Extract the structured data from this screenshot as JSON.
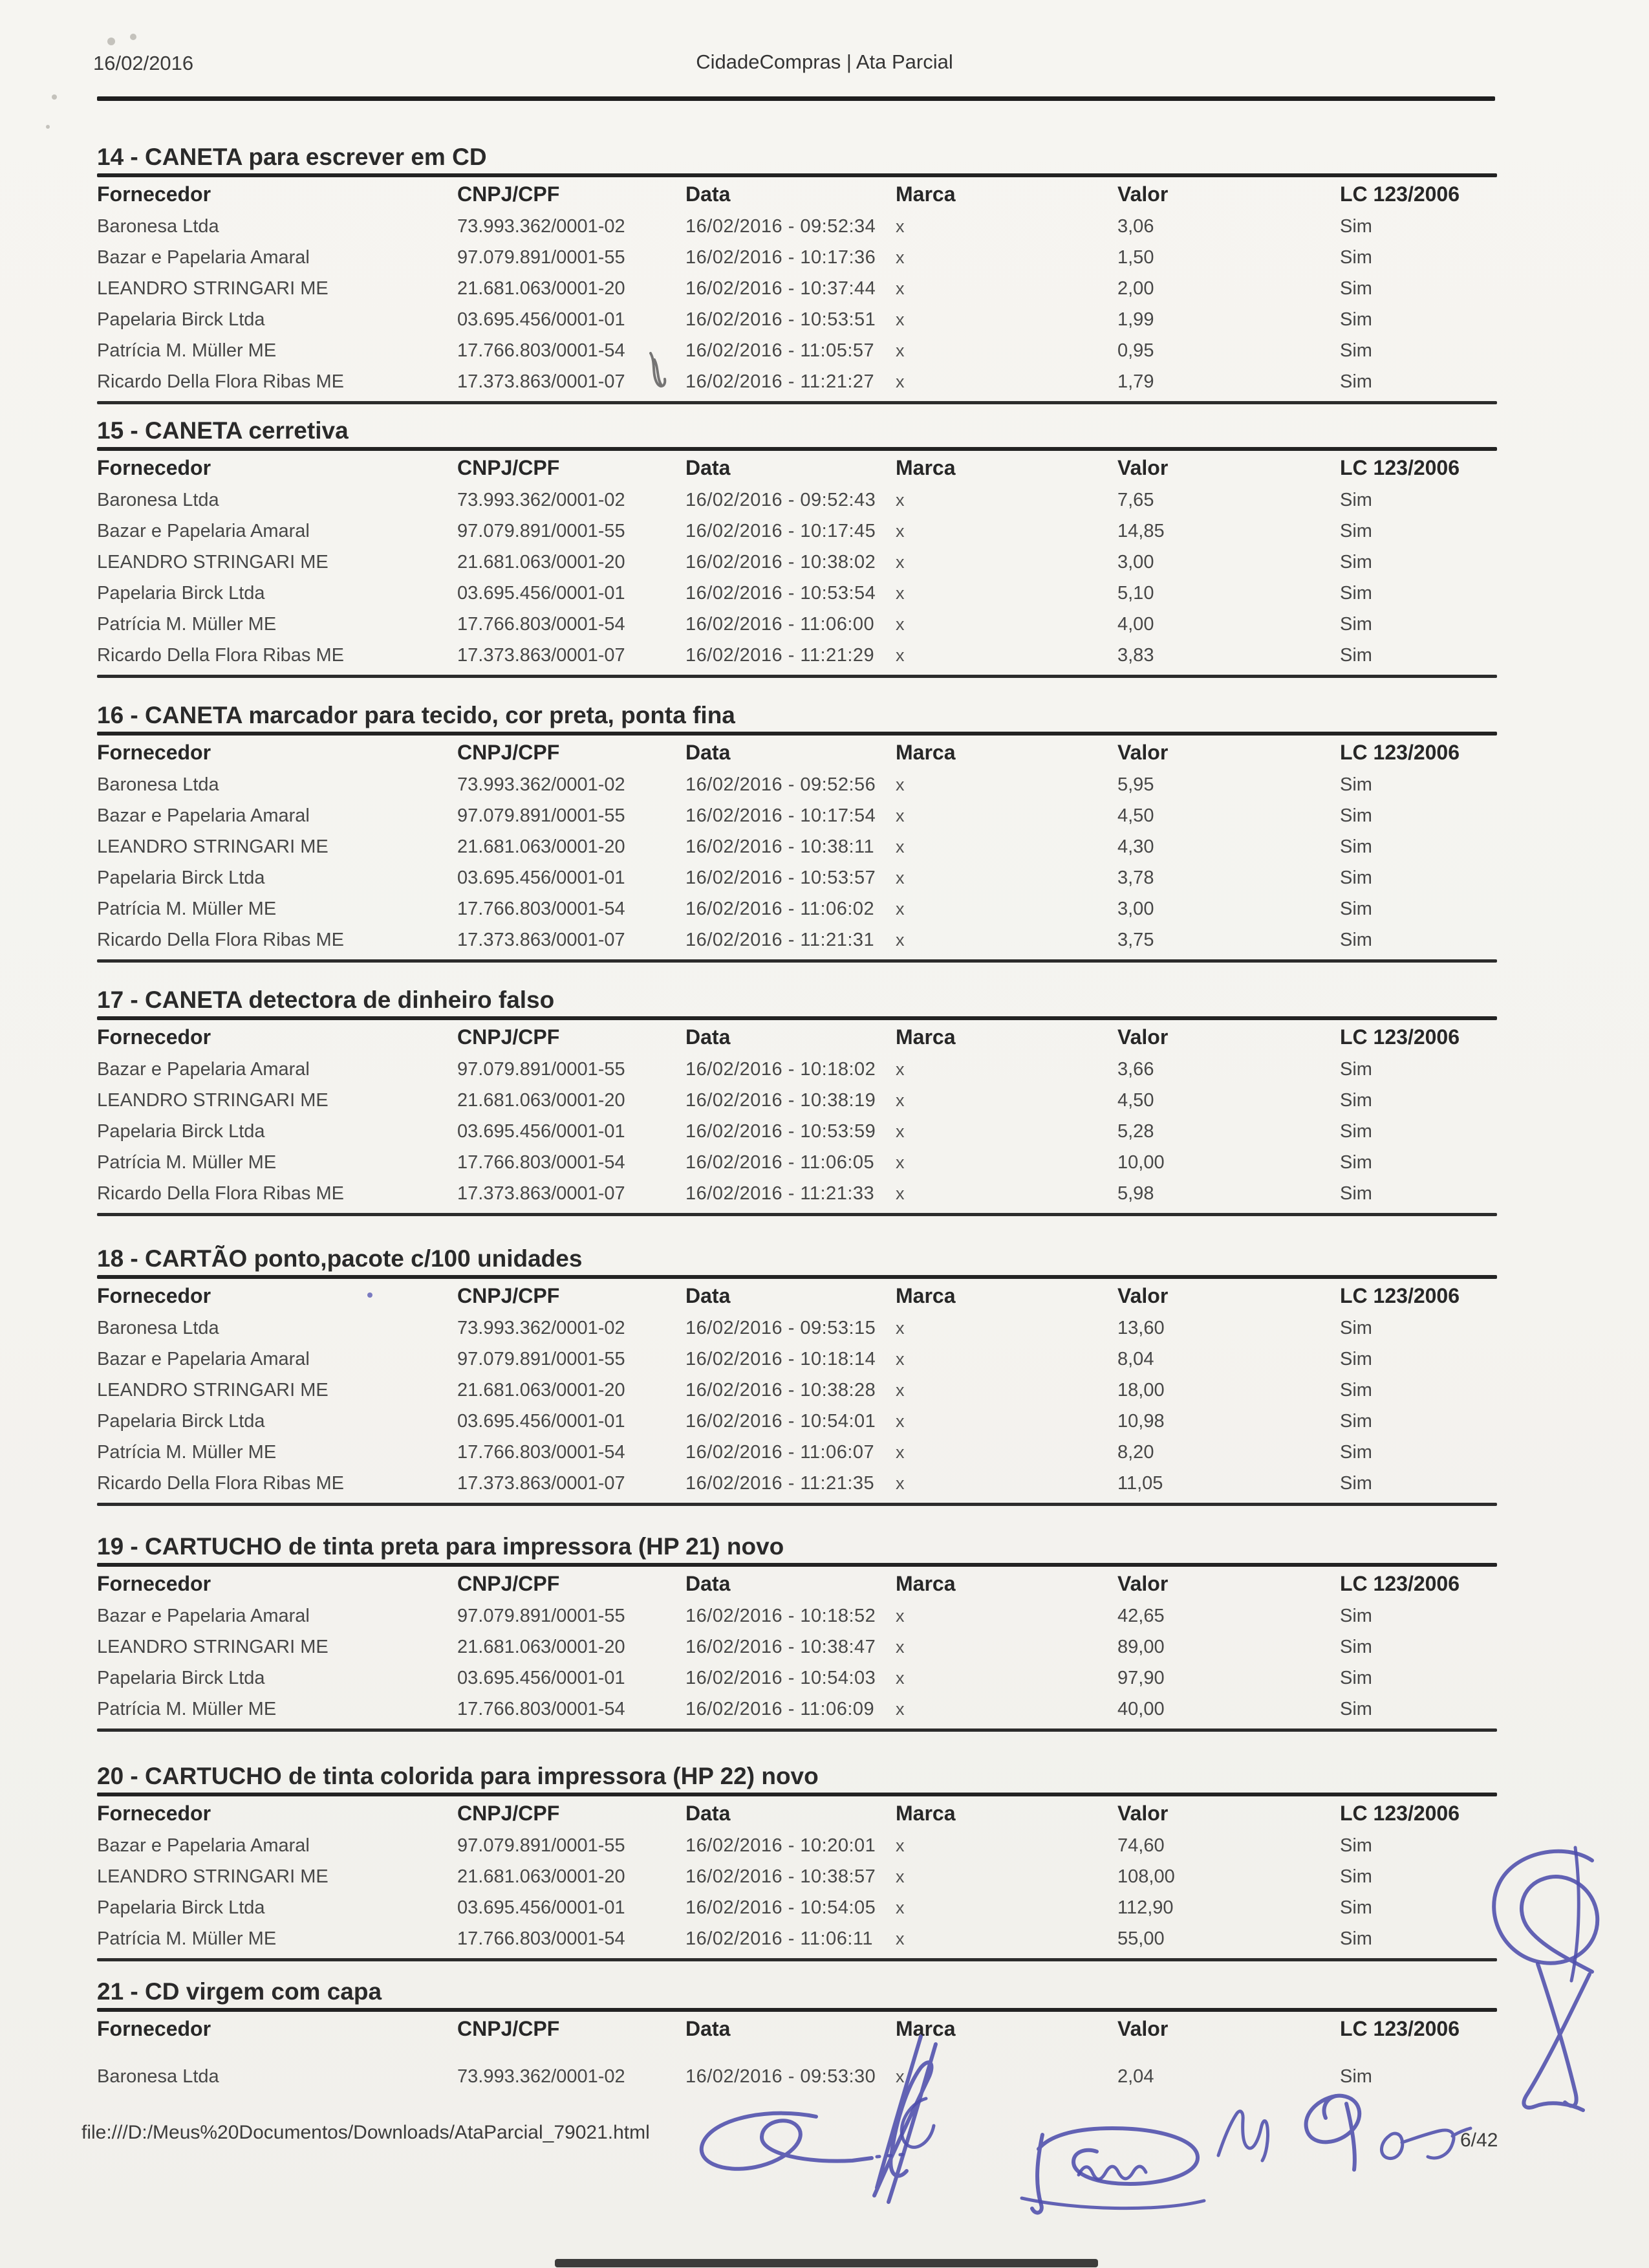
{
  "header": {
    "date": "16/02/2016",
    "title": "CidadeCompras | Ata Parcial"
  },
  "table_columns": {
    "fornecedor": "Fornecedor",
    "cnpj": "CNPJ/CPF",
    "data": "Data",
    "marca": "Marca",
    "valor": "Valor",
    "lc": "LC 123/2006"
  },
  "sections": [
    {
      "title": "14 - CANETA para escrever em CD",
      "rows": [
        {
          "fornecedor": "Baronesa Ltda",
          "cnpj": "73.993.362/0001-02",
          "data": "16/02/2016 - 09:52:34",
          "marca": "x",
          "valor": "3,06",
          "lc": "Sim"
        },
        {
          "fornecedor": "Bazar e Papelaria Amaral",
          "cnpj": "97.079.891/0001-55",
          "data": "16/02/2016 - 10:17:36",
          "marca": "x",
          "valor": "1,50",
          "lc": "Sim"
        },
        {
          "fornecedor": "LEANDRO STRINGARI ME",
          "cnpj": "21.681.063/0001-20",
          "data": "16/02/2016 - 10:37:44",
          "marca": "x",
          "valor": "2,00",
          "lc": "Sim"
        },
        {
          "fornecedor": "Papelaria Birck Ltda",
          "cnpj": "03.695.456/0001-01",
          "data": "16/02/2016 - 10:53:51",
          "marca": "x",
          "valor": "1,99",
          "lc": "Sim"
        },
        {
          "fornecedor": "Patrícia M. Müller ME",
          "cnpj": "17.766.803/0001-54",
          "data": "16/02/2016 - 11:05:57",
          "marca": "x",
          "valor": "0,95",
          "lc": "Sim"
        },
        {
          "fornecedor": "Ricardo Della Flora Ribas ME",
          "cnpj": "17.373.863/0001-07",
          "data": "16/02/2016 - 11:21:27",
          "marca": "x",
          "valor": "1,79",
          "lc": "Sim"
        }
      ]
    },
    {
      "title": "15 - CANETA cerretiva",
      "rows": [
        {
          "fornecedor": "Baronesa Ltda",
          "cnpj": "73.993.362/0001-02",
          "data": "16/02/2016 - 09:52:43",
          "marca": "x",
          "valor": "7,65",
          "lc": "Sim"
        },
        {
          "fornecedor": "Bazar e Papelaria Amaral",
          "cnpj": "97.079.891/0001-55",
          "data": "16/02/2016 - 10:17:45",
          "marca": "x",
          "valor": "14,85",
          "lc": "Sim"
        },
        {
          "fornecedor": "LEANDRO STRINGARI ME",
          "cnpj": "21.681.063/0001-20",
          "data": "16/02/2016 - 10:38:02",
          "marca": "x",
          "valor": "3,00",
          "lc": "Sim"
        },
        {
          "fornecedor": "Papelaria Birck Ltda",
          "cnpj": "03.695.456/0001-01",
          "data": "16/02/2016 - 10:53:54",
          "marca": "x",
          "valor": "5,10",
          "lc": "Sim"
        },
        {
          "fornecedor": "Patrícia M. Müller ME",
          "cnpj": "17.766.803/0001-54",
          "data": "16/02/2016 - 11:06:00",
          "marca": "x",
          "valor": "4,00",
          "lc": "Sim"
        },
        {
          "fornecedor": "Ricardo Della Flora Ribas ME",
          "cnpj": "17.373.863/0001-07",
          "data": "16/02/2016 - 11:21:29",
          "marca": "x",
          "valor": "3,83",
          "lc": "Sim"
        }
      ]
    },
    {
      "title": "16 - CANETA marcador para tecido, cor preta, ponta fina",
      "rows": [
        {
          "fornecedor": "Baronesa Ltda",
          "cnpj": "73.993.362/0001-02",
          "data": "16/02/2016 - 09:52:56",
          "marca": "x",
          "valor": "5,95",
          "lc": "Sim"
        },
        {
          "fornecedor": "Bazar e Papelaria Amaral",
          "cnpj": "97.079.891/0001-55",
          "data": "16/02/2016 - 10:17:54",
          "marca": "x",
          "valor": "4,50",
          "lc": "Sim"
        },
        {
          "fornecedor": "LEANDRO STRINGARI ME",
          "cnpj": "21.681.063/0001-20",
          "data": "16/02/2016 - 10:38:11",
          "marca": "x",
          "valor": "4,30",
          "lc": "Sim"
        },
        {
          "fornecedor": "Papelaria Birck Ltda",
          "cnpj": "03.695.456/0001-01",
          "data": "16/02/2016 - 10:53:57",
          "marca": "x",
          "valor": "3,78",
          "lc": "Sim"
        },
        {
          "fornecedor": "Patrícia M. Müller ME",
          "cnpj": "17.766.803/0001-54",
          "data": "16/02/2016 - 11:06:02",
          "marca": "x",
          "valor": "3,00",
          "lc": "Sim"
        },
        {
          "fornecedor": "Ricardo Della Flora Ribas ME",
          "cnpj": "17.373.863/0001-07",
          "data": "16/02/2016 - 11:21:31",
          "marca": "x",
          "valor": "3,75",
          "lc": "Sim"
        }
      ]
    },
    {
      "title": "17 - CANETA detectora de dinheiro falso",
      "rows": [
        {
          "fornecedor": "Bazar e Papelaria Amaral",
          "cnpj": "97.079.891/0001-55",
          "data": "16/02/2016 - 10:18:02",
          "marca": "x",
          "valor": "3,66",
          "lc": "Sim"
        },
        {
          "fornecedor": "LEANDRO STRINGARI ME",
          "cnpj": "21.681.063/0001-20",
          "data": "16/02/2016 - 10:38:19",
          "marca": "x",
          "valor": "4,50",
          "lc": "Sim"
        },
        {
          "fornecedor": "Papelaria Birck Ltda",
          "cnpj": "03.695.456/0001-01",
          "data": "16/02/2016 - 10:53:59",
          "marca": "x",
          "valor": "5,28",
          "lc": "Sim"
        },
        {
          "fornecedor": "Patrícia M. Müller ME",
          "cnpj": "17.766.803/0001-54",
          "data": "16/02/2016 - 11:06:05",
          "marca": "x",
          "valor": "10,00",
          "lc": "Sim"
        },
        {
          "fornecedor": "Ricardo Della Flora Ribas ME",
          "cnpj": "17.373.863/0001-07",
          "data": "16/02/2016 - 11:21:33",
          "marca": "x",
          "valor": "5,98",
          "lc": "Sim"
        }
      ]
    },
    {
      "title": "18 - CARTÃO ponto,pacote c/100 unidades",
      "rows": [
        {
          "fornecedor": "Baronesa Ltda",
          "cnpj": "73.993.362/0001-02",
          "data": "16/02/2016 - 09:53:15",
          "marca": "x",
          "valor": "13,60",
          "lc": "Sim"
        },
        {
          "fornecedor": "Bazar e Papelaria Amaral",
          "cnpj": "97.079.891/0001-55",
          "data": "16/02/2016 - 10:18:14",
          "marca": "x",
          "valor": "8,04",
          "lc": "Sim"
        },
        {
          "fornecedor": "LEANDRO STRINGARI ME",
          "cnpj": "21.681.063/0001-20",
          "data": "16/02/2016 - 10:38:28",
          "marca": "x",
          "valor": "18,00",
          "lc": "Sim"
        },
        {
          "fornecedor": "Papelaria Birck Ltda",
          "cnpj": "03.695.456/0001-01",
          "data": "16/02/2016 - 10:54:01",
          "marca": "x",
          "valor": "10,98",
          "lc": "Sim"
        },
        {
          "fornecedor": "Patrícia M. Müller ME",
          "cnpj": "17.766.803/0001-54",
          "data": "16/02/2016 - 11:06:07",
          "marca": "x",
          "valor": "8,20",
          "lc": "Sim"
        },
        {
          "fornecedor": "Ricardo Della Flora Ribas ME",
          "cnpj": "17.373.863/0001-07",
          "data": "16/02/2016 - 11:21:35",
          "marca": "x",
          "valor": "11,05",
          "lc": "Sim"
        }
      ]
    },
    {
      "title": "19 - CARTUCHO de tinta preta para impressora (HP 21) novo",
      "rows": [
        {
          "fornecedor": "Bazar e Papelaria Amaral",
          "cnpj": "97.079.891/0001-55",
          "data": "16/02/2016 - 10:18:52",
          "marca": "x",
          "valor": "42,65",
          "lc": "Sim"
        },
        {
          "fornecedor": "LEANDRO STRINGARI ME",
          "cnpj": "21.681.063/0001-20",
          "data": "16/02/2016 - 10:38:47",
          "marca": "x",
          "valor": "89,00",
          "lc": "Sim"
        },
        {
          "fornecedor": "Papelaria Birck Ltda",
          "cnpj": "03.695.456/0001-01",
          "data": "16/02/2016 - 10:54:03",
          "marca": "x",
          "valor": "97,90",
          "lc": "Sim"
        },
        {
          "fornecedor": "Patrícia M. Müller ME",
          "cnpj": "17.766.803/0001-54",
          "data": "16/02/2016 - 11:06:09",
          "marca": "x",
          "valor": "40,00",
          "lc": "Sim"
        }
      ]
    },
    {
      "title": "20 - CARTUCHO de tinta colorida para impressora (HP 22) novo",
      "rows": [
        {
          "fornecedor": "Bazar e Papelaria Amaral",
          "cnpj": "97.079.891/0001-55",
          "data": "16/02/2016 - 10:20:01",
          "marca": "x",
          "valor": "74,60",
          "lc": "Sim"
        },
        {
          "fornecedor": "LEANDRO STRINGARI ME",
          "cnpj": "21.681.063/0001-20",
          "data": "16/02/2016 - 10:38:57",
          "marca": "x",
          "valor": "108,00",
          "lc": "Sim"
        },
        {
          "fornecedor": "Papelaria Birck Ltda",
          "cnpj": "03.695.456/0001-01",
          "data": "16/02/2016 - 10:54:05",
          "marca": "x",
          "valor": "112,90",
          "lc": "Sim"
        },
        {
          "fornecedor": "Patrícia M. Müller ME",
          "cnpj": "17.766.803/0001-54",
          "data": "16/02/2016 - 11:06:11",
          "marca": "x",
          "valor": "55,00",
          "lc": "Sim"
        }
      ]
    },
    {
      "title": "21 - CD virgem com capa",
      "rows": [
        {
          "fornecedor": "Baronesa Ltda",
          "cnpj": "73.993.362/0001-02",
          "data": "16/02/2016 - 09:53:30",
          "marca": "x",
          "valor": "2,04",
          "lc": "Sim"
        }
      ]
    }
  ],
  "footer": {
    "file_path": "file:///D:/Meus%20Documentos/Downloads/AtaParcial_79021.html",
    "page_number": "6/42"
  },
  "colors": {
    "ink": "#4d4dac",
    "paper": "#f4f3ef",
    "rule": "#232323"
  }
}
